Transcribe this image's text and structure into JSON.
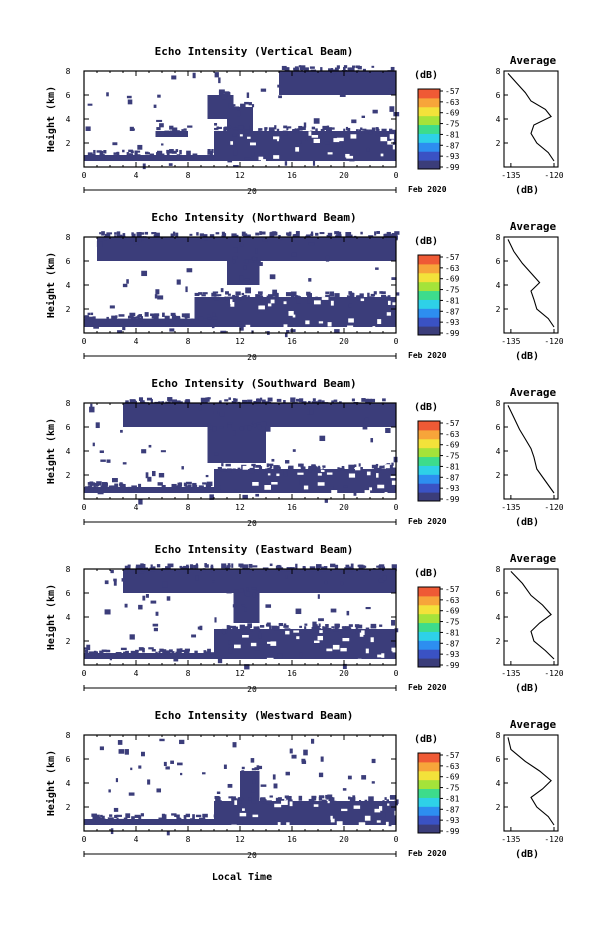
{
  "colors": {
    "echo": "#3b3d7a",
    "colorbar": [
      "#3b3d7a",
      "#3a52c4",
      "#2d8ef0",
      "#2ed1e8",
      "#3ddc8c",
      "#a5e33a",
      "#f3e23a",
      "#f7a53a",
      "#ef5a35"
    ]
  },
  "shared": {
    "ylabel": "Height (km)",
    "xlabel": "Local Time",
    "day_label": "20",
    "date_label": "Feb 2020",
    "avg_title": "Average",
    "avg_xlabel": "(dB)",
    "cb_unit": "(dB)",
    "cb_ticks": [
      "-57",
      "-63",
      "-69",
      "-75",
      "-81",
      "-87",
      "-93",
      "-99"
    ],
    "x_ticks": [
      "0",
      "4",
      "8",
      "12",
      "16",
      "20",
      "0"
    ],
    "y_ticks": [
      "8",
      "6",
      "4",
      "2"
    ],
    "avg_y_ticks": [
      "8",
      "6",
      "4",
      "2"
    ],
    "avg_x_ticks": [
      "-135",
      "-120"
    ]
  },
  "chart_data": [
    {
      "type": "heatmap",
      "title": "Echo Intensity (Vertical Beam)",
      "x_range_hours": [
        0,
        24
      ],
      "y_range_km": [
        0,
        8
      ],
      "colorbar_range_db": [
        -99,
        -57
      ],
      "regions": [
        {
          "t0": 15.0,
          "t1": 24.0,
          "h0": 6.0,
          "h1": 8.0
        },
        {
          "t0": 9.5,
          "t1": 11.5,
          "h0": 4.0,
          "h1": 6.0
        },
        {
          "t0": 11.0,
          "t1": 13.0,
          "h0": 2.5,
          "h1": 5.0
        },
        {
          "t0": 10.0,
          "t1": 24.0,
          "h0": 0.5,
          "h1": 3.0
        },
        {
          "t0": 0.0,
          "t1": 10.0,
          "h0": 0.5,
          "h1": 1.0
        },
        {
          "t0": 5.5,
          "t1": 8.0,
          "h0": 2.5,
          "h1": 3.0
        }
      ],
      "avg_x": [
        -120,
        -122,
        -126,
        -128,
        -127,
        -121,
        -123,
        -128,
        -130,
        -133,
        -136
      ],
      "avg_y": [
        0.5,
        1.2,
        2.0,
        2.8,
        3.5,
        4.2,
        4.8,
        5.5,
        6.2,
        7.0,
        7.8
      ]
    },
    {
      "type": "heatmap",
      "title": "Echo Intensity (Northward Beam)",
      "x_range_hours": [
        0,
        24
      ],
      "y_range_km": [
        0,
        8
      ],
      "colorbar_range_db": [
        -99,
        -57
      ],
      "regions": [
        {
          "t0": 1.0,
          "t1": 24.0,
          "h0": 6.0,
          "h1": 8.0
        },
        {
          "t0": 11.0,
          "t1": 13.5,
          "h0": 4.0,
          "h1": 6.0
        },
        {
          "t0": 8.5,
          "t1": 24.0,
          "h0": 0.5,
          "h1": 3.0
        },
        {
          "t0": 0.0,
          "t1": 10.0,
          "h0": 0.5,
          "h1": 1.2
        }
      ],
      "avg_x": [
        -120,
        -122,
        -126,
        -127,
        -128,
        -125,
        -128,
        -131,
        -134,
        -136
      ],
      "avg_y": [
        0.5,
        1.2,
        2.0,
        2.8,
        3.5,
        4.2,
        5.0,
        5.8,
        6.8,
        7.8
      ]
    },
    {
      "type": "heatmap",
      "title": "Echo Intensity (Southward Beam)",
      "x_range_hours": [
        0,
        24
      ],
      "y_range_km": [
        0,
        8
      ],
      "colorbar_range_db": [
        -99,
        -57
      ],
      "regions": [
        {
          "t0": 3.0,
          "t1": 24.0,
          "h0": 6.0,
          "h1": 8.0
        },
        {
          "t0": 9.5,
          "t1": 14.0,
          "h0": 3.0,
          "h1": 6.0
        },
        {
          "t0": 10.0,
          "t1": 24.0,
          "h0": 0.5,
          "h1": 2.5
        },
        {
          "t0": 0.0,
          "t1": 11.0,
          "h0": 0.5,
          "h1": 1.0
        }
      ],
      "avg_x": [
        -120,
        -123,
        -126,
        -127,
        -128,
        -130,
        -132,
        -134,
        -136
      ],
      "avg_y": [
        0.5,
        1.5,
        2.5,
        3.5,
        4.2,
        5.0,
        5.8,
        6.8,
        7.8
      ]
    },
    {
      "type": "heatmap",
      "title": "Echo Intensity (Eastward Beam)",
      "x_range_hours": [
        0,
        24
      ],
      "y_range_km": [
        0,
        8
      ],
      "colorbar_range_db": [
        -99,
        -57
      ],
      "regions": [
        {
          "t0": 3.0,
          "t1": 24.0,
          "h0": 6.0,
          "h1": 8.0
        },
        {
          "t0": 11.5,
          "t1": 13.5,
          "h0": 3.5,
          "h1": 6.0
        },
        {
          "t0": 10.0,
          "t1": 24.0,
          "h0": 0.5,
          "h1": 3.0
        },
        {
          "t0": 0.0,
          "t1": 10.0,
          "h0": 0.5,
          "h1": 1.0
        }
      ],
      "avg_x": [
        -120,
        -123,
        -127,
        -128,
        -125,
        -121,
        -124,
        -128,
        -131,
        -135
      ],
      "avg_y": [
        0.5,
        1.2,
        2.0,
        2.8,
        3.5,
        4.2,
        5.0,
        5.8,
        6.8,
        7.8
      ]
    },
    {
      "type": "heatmap",
      "title": "Echo Intensity (Westward Beam)",
      "x_range_hours": [
        0,
        24
      ],
      "y_range_km": [
        0,
        8
      ],
      "colorbar_range_db": [
        -99,
        -57
      ],
      "regions": [
        {
          "t0": 12.0,
          "t1": 13.5,
          "h0": 2.5,
          "h1": 5.0
        },
        {
          "t0": 10.0,
          "t1": 24.0,
          "h0": 0.5,
          "h1": 2.5
        },
        {
          "t0": 0.0,
          "t1": 10.0,
          "h0": 0.5,
          "h1": 1.0
        }
      ],
      "avg_x": [
        -120,
        -122,
        -126,
        -128,
        -124,
        -121,
        -125,
        -130,
        -135,
        -136
      ],
      "avg_y": [
        0.5,
        1.2,
        2.0,
        2.8,
        3.5,
        4.2,
        5.0,
        5.8,
        6.8,
        7.8
      ]
    }
  ]
}
